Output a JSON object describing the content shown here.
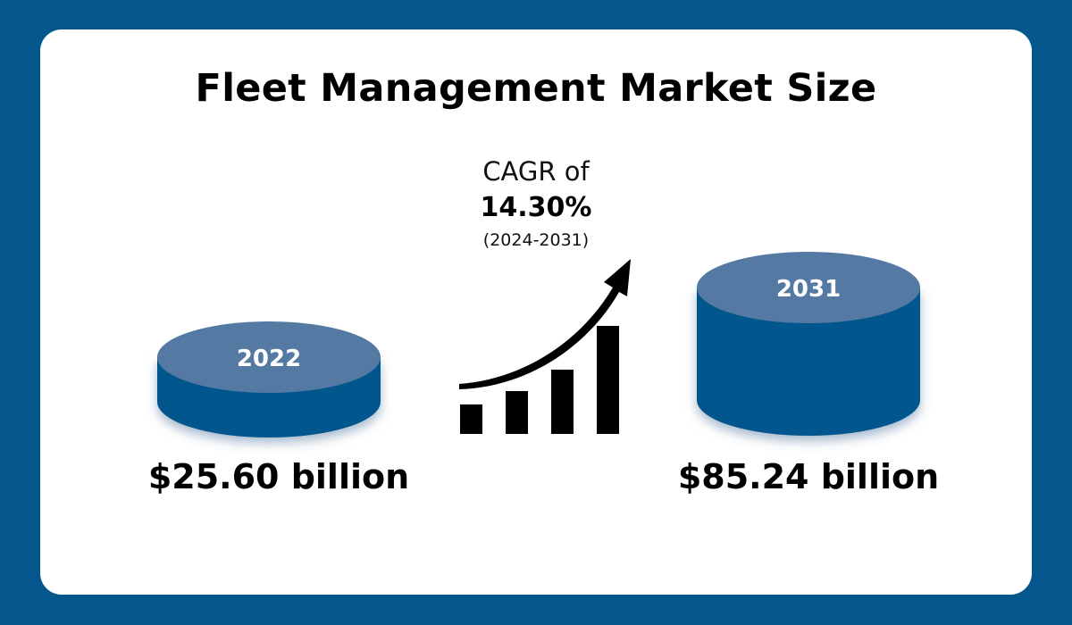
{
  "title": "Fleet Management Market Size",
  "cagr": {
    "label": "CAGR of",
    "value": "14.30%",
    "period": "(2024-2031)"
  },
  "colors": {
    "background": "#03578d",
    "cylinder_side": "#03578d",
    "cylinder_top": "#5479a3"
  },
  "icon": "growth-chart-arrow-icon",
  "chart_data": {
    "type": "bar",
    "title": "Fleet Management Market Size",
    "categories": [
      "2022",
      "2031"
    ],
    "values": [
      25.6,
      85.24
    ],
    "value_labels": [
      "$25.60 billion",
      "$85.24 billion"
    ],
    "unit": "billion USD"
  }
}
